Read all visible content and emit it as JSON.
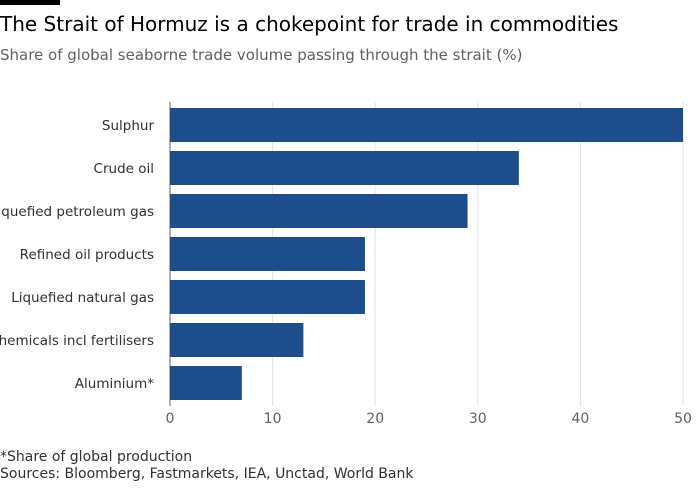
{
  "header": {
    "title": "The Strait of Hormuz is a chokepoint for trade in commodities",
    "subtitle": "Share of global seaborne trade volume passing through the strait (%)"
  },
  "footer": {
    "footnote": "*Share of global production",
    "sources": "Sources: Bloomberg, Fastmarkets, IEA, Unctad, World Bank"
  },
  "colors": {
    "bar": "#1e4d8c",
    "grid": "#e6e3df",
    "axis": "#66605c",
    "text": "#33302e"
  },
  "chart_data": {
    "type": "bar",
    "orientation": "horizontal",
    "title": "The Strait of Hormuz is a chokepoint for trade in commodities",
    "subtitle": "Share of global seaborne trade volume passing through the strait (%)",
    "categories": [
      "Sulphur",
      "Crude oil",
      "Liquefied petroleum gas",
      "Refined oil products",
      "Liquefied natural gas",
      "Chemicals incl fertilisers",
      "Aluminium*"
    ],
    "values": [
      50,
      34,
      29,
      19,
      19,
      13,
      7
    ],
    "xlabel": "",
    "ylabel": "",
    "xlim": [
      0,
      50
    ],
    "xticks": [
      0,
      10,
      20,
      30,
      40,
      50
    ],
    "grid": true,
    "legend": "none"
  }
}
